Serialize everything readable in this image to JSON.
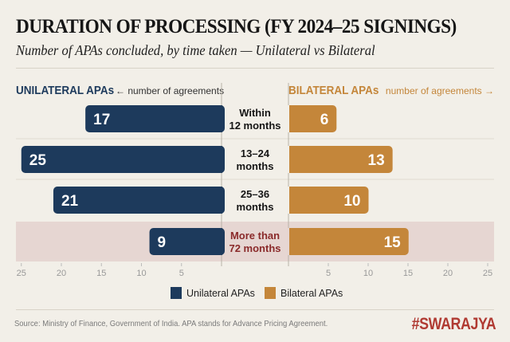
{
  "title": "DURATION OF PROCESSING (FY 2024–25 SIGNINGS)",
  "subtitle": "Number of APAs concluded, by time taken — Unilateral vs Bilateral",
  "source": "Source: Ministry of Finance, Government of India. APA stands for Advance Pricing Agreement.",
  "brand": "#SWARAJYA",
  "colors": {
    "unilateral": "#1d3a5c",
    "bilateral": "#c4863a",
    "highlight_band": "#e6d6d2",
    "highlight_text": "#8a2a2a",
    "background": "#f2efe8"
  },
  "chart_data": {
    "type": "bar",
    "orientation": "horizontal-butterfly",
    "title": "DURATION OF PROCESSING (FY 2024–25 SIGNINGS)",
    "left_header": "UNILATERAL APAs",
    "left_axis_label": "← number of agreements",
    "right_header": "BILATERAL APAs",
    "right_axis_label": "number of agreements →",
    "categories": [
      [
        "Within",
        "12 months"
      ],
      [
        "13–24",
        "months"
      ],
      [
        "25–36",
        "months"
      ],
      [
        "More than",
        "72 months"
      ]
    ],
    "highlighted_category_index": 3,
    "series": [
      {
        "name": "Unilateral APAs",
        "side": "left",
        "values": [
          17,
          25,
          21,
          9
        ]
      },
      {
        "name": "Bilateral APAs",
        "side": "right",
        "values": [
          6,
          13,
          10,
          15
        ]
      }
    ],
    "xlim": [
      0,
      25
    ],
    "ticks": [
      5,
      10,
      15,
      20,
      25
    ],
    "legend": [
      "Unilateral APAs",
      "Bilateral APAs"
    ],
    "legend_position": "bottom",
    "grid": false
  }
}
